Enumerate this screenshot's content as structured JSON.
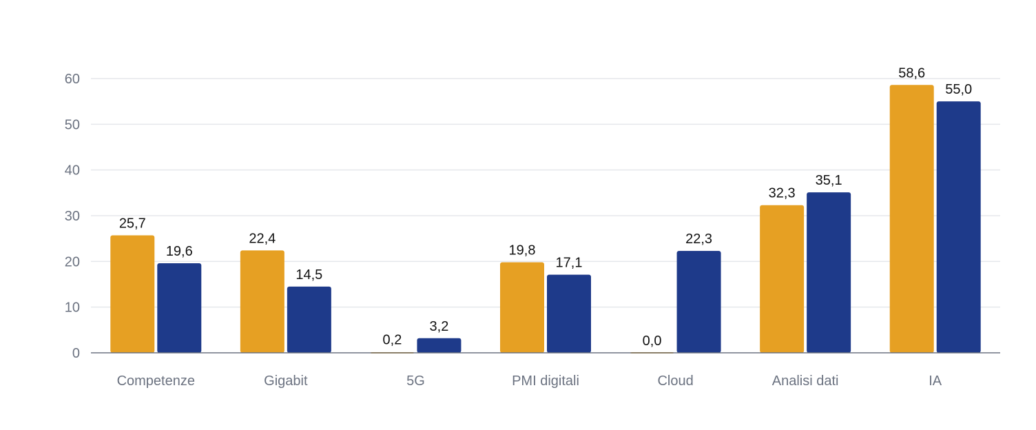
{
  "chart_data": {
    "type": "bar",
    "title": "",
    "xlabel": "",
    "ylabel": "",
    "ylim": [
      0,
      60
    ],
    "yticks": [
      "0",
      "10",
      "20",
      "30",
      "40",
      "50",
      "60"
    ],
    "grid": true,
    "legend": "none",
    "categories": [
      "Competenze",
      "Gigabit",
      "5G",
      "PMI digitali",
      "Cloud",
      "Analisi dati",
      "IA"
    ],
    "series": [
      {
        "color": "#e6a023",
        "values": [
          25.7,
          22.4,
          0.2,
          19.8,
          0.0,
          32.3,
          58.6
        ],
        "labels": [
          "25,7",
          "22,4",
          "0,2",
          "19,8",
          "0,0",
          "32,3",
          "58,6"
        ]
      },
      {
        "color": "#1e3a8a",
        "values": [
          19.6,
          14.5,
          3.2,
          17.1,
          22.3,
          35.1,
          55.0
        ],
        "labels": [
          "19,6",
          "14,5",
          "3,2",
          "17,1",
          "22,3",
          "35,1",
          "55,0"
        ]
      }
    ]
  }
}
